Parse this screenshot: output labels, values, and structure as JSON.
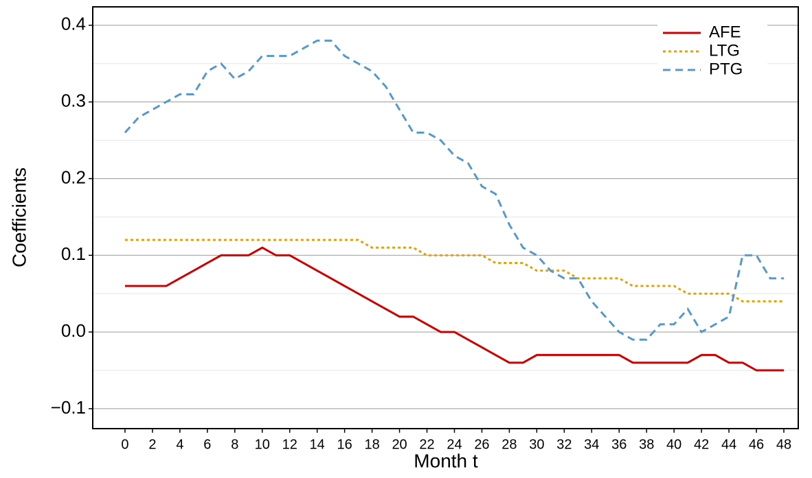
{
  "chart_data": {
    "type": "line",
    "x_label": "Month t",
    "y_label": "Coefficients",
    "x": [
      0,
      1,
      2,
      3,
      4,
      5,
      6,
      7,
      8,
      9,
      10,
      11,
      12,
      13,
      14,
      15,
      16,
      17,
      18,
      19,
      20,
      21,
      22,
      23,
      24,
      25,
      26,
      27,
      28,
      29,
      30,
      31,
      32,
      33,
      34,
      35,
      36,
      37,
      38,
      39,
      40,
      41,
      42,
      43,
      44,
      45,
      46,
      47,
      48
    ],
    "series": [
      {
        "name": "AFE",
        "color": "#cc0000",
        "dash": "solid",
        "values": [
          0.06,
          0.06,
          0.06,
          0.06,
          0.07,
          0.08,
          0.09,
          0.1,
          0.1,
          0.1,
          0.11,
          0.1,
          0.1,
          0.09,
          0.08,
          0.07,
          0.06,
          0.05,
          0.04,
          0.03,
          0.02,
          0.02,
          0.01,
          0.0,
          0.0,
          -0.01,
          -0.02,
          -0.03,
          -0.04,
          -0.04,
          -0.03,
          -0.03,
          -0.03,
          -0.03,
          -0.03,
          -0.03,
          -0.03,
          -0.04,
          -0.04,
          -0.04,
          -0.04,
          -0.04,
          -0.03,
          -0.03,
          -0.04,
          -0.04,
          -0.05,
          -0.05,
          -0.05
        ]
      },
      {
        "name": "LTG",
        "color": "#e6a000",
        "dash": "dotted",
        "values": [
          0.12,
          0.12,
          0.12,
          0.12,
          0.12,
          0.12,
          0.12,
          0.12,
          0.12,
          0.12,
          0.12,
          0.12,
          0.12,
          0.12,
          0.12,
          0.12,
          0.12,
          0.12,
          0.11,
          0.11,
          0.11,
          0.11,
          0.1,
          0.1,
          0.1,
          0.1,
          0.1,
          0.09,
          0.09,
          0.09,
          0.08,
          0.08,
          0.08,
          0.07,
          0.07,
          0.07,
          0.07,
          0.06,
          0.06,
          0.06,
          0.06,
          0.05,
          0.05,
          0.05,
          0.05,
          0.04,
          0.04,
          0.04,
          0.04
        ]
      },
      {
        "name": "PTG",
        "color": "#5599cc",
        "dash": "dashed",
        "values": [
          0.26,
          0.28,
          0.29,
          0.3,
          0.31,
          0.31,
          0.34,
          0.35,
          0.33,
          0.34,
          0.36,
          0.36,
          0.36,
          0.37,
          0.38,
          0.38,
          0.36,
          0.35,
          0.34,
          0.32,
          0.29,
          0.26,
          0.26,
          0.25,
          0.23,
          0.22,
          0.19,
          0.18,
          0.14,
          0.11,
          0.1,
          0.08,
          0.07,
          0.07,
          0.04,
          0.02,
          0.0,
          -0.01,
          -0.01,
          0.01,
          0.01,
          0.03,
          0.0,
          0.01,
          0.02,
          0.1,
          0.1,
          0.07,
          0.07
        ]
      }
    ],
    "xlim": [
      -2.35,
      49.05
    ],
    "xticks": [
      0,
      2,
      4,
      6,
      8,
      10,
      12,
      14,
      16,
      18,
      20,
      22,
      24,
      26,
      28,
      30,
      32,
      34,
      36,
      38,
      40,
      42,
      44,
      46,
      48
    ],
    "ylim": [
      -0.126,
      0.424
    ],
    "yticks": [
      {
        "value": -0.1,
        "label": "−0.1"
      },
      {
        "value": 0,
        "label": "0.0"
      },
      0.1,
      0.2,
      0.3,
      0.4
    ],
    "grid": true,
    "legend": "top-right"
  }
}
